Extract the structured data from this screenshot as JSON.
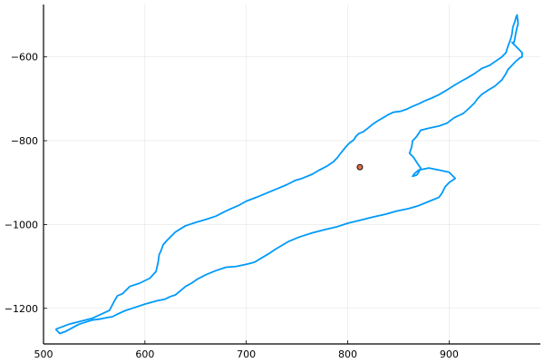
{
  "chart_data": {
    "type": "line",
    "title": "",
    "xlabel": "",
    "ylabel": "",
    "xlim": [
      500,
      990
    ],
    "ylim": [
      -1285,
      -475
    ],
    "grid": true,
    "legend": "none",
    "x_ticks": [
      {
        "value": 500,
        "label": "500"
      },
      {
        "value": 600,
        "label": "600"
      },
      {
        "value": 700,
        "label": "700"
      },
      {
        "value": 800,
        "label": "800"
      },
      {
        "value": 900,
        "label": "900"
      }
    ],
    "y_ticks": [
      {
        "value": -600,
        "label": "−600"
      },
      {
        "value": -800,
        "label": "−800"
      },
      {
        "value": -1000,
        "label": "−1000"
      },
      {
        "value": -1200,
        "label": "−1200"
      }
    ],
    "series": [
      {
        "name": "outline",
        "kind": "line",
        "color": "#009AFA",
        "x": [
          512,
          525,
          535,
          548,
          556,
          565,
          570,
          573,
          578,
          585,
          595,
          605,
          611,
          613,
          614,
          616,
          618,
          621,
          625,
          630,
          640,
          650,
          660,
          670,
          678,
          685,
          692,
          700,
          710,
          720,
          730,
          740,
          748,
          755,
          765,
          772,
          780,
          786,
          790,
          793,
          798,
          802,
          806,
          808,
          811,
          815,
          820,
          825,
          830,
          835,
          840,
          845,
          852,
          858,
          864,
          870,
          876,
          883,
          890,
          897,
          905,
          912,
          918,
          925,
          932,
          940,
          946,
          952,
          956,
          958,
          960,
          961,
          962,
          963,
          965,
          966,
          967,
          968,
          966,
          965,
          964,
          963,
          962,
          964,
          968,
          972,
          972,
          970,
          966,
          962,
          958,
          956,
          952,
          945,
          938,
          932,
          928,
          925,
          920,
          914,
          905,
          898,
          890,
          880,
          872,
          868,
          864,
          863,
          861,
          865,
          869,
          872,
          870,
          868,
          864,
          866,
          870,
          880,
          890,
          900,
          906,
          900,
          896,
          893,
          890,
          880,
          870,
          860,
          848,
          838,
          825,
          812,
          800,
          790,
          778,
          765,
          752,
          742,
          735,
          728,
          722,
          715,
          708,
          700,
          690,
          680,
          670,
          660,
          652,
          646,
          640,
          635,
          630,
          625,
          620,
          612,
          600,
          590,
          580,
          572,
          568,
          563,
          557,
          548,
          535,
          522,
          516,
          512
        ],
        "y": [
          -1250,
          -1238,
          -1232,
          -1224,
          -1215,
          -1205,
          -1182,
          -1170,
          -1165,
          -1148,
          -1140,
          -1128,
          -1112,
          -1090,
          -1072,
          -1062,
          -1048,
          -1040,
          -1030,
          -1018,
          -1003,
          -995,
          -988,
          -980,
          -970,
          -962,
          -955,
          -944,
          -935,
          -925,
          -915,
          -905,
          -895,
          -890,
          -880,
          -870,
          -860,
          -850,
          -840,
          -830,
          -815,
          -805,
          -798,
          -790,
          -783,
          -779,
          -770,
          -760,
          -752,
          -745,
          -738,
          -732,
          -730,
          -725,
          -718,
          -712,
          -705,
          -698,
          -690,
          -680,
          -668,
          -658,
          -650,
          -640,
          -628,
          -620,
          -610,
          -600,
          -590,
          -575,
          -562,
          -555,
          -545,
          -528,
          -515,
          -505,
          -500,
          -520,
          -540,
          -555,
          -565,
          -568,
          -565,
          -570,
          -580,
          -590,
          -600,
          -602,
          -610,
          -620,
          -630,
          -640,
          -655,
          -670,
          -680,
          -690,
          -700,
          -710,
          -722,
          -735,
          -745,
          -758,
          -765,
          -770,
          -775,
          -790,
          -800,
          -815,
          -830,
          -840,
          -855,
          -865,
          -875,
          -882,
          -885,
          -878,
          -870,
          -865,
          -870,
          -875,
          -890,
          -900,
          -910,
          -925,
          -935,
          -945,
          -955,
          -962,
          -968,
          -975,
          -982,
          -990,
          -997,
          -1005,
          -1012,
          -1020,
          -1030,
          -1040,
          -1050,
          -1060,
          -1070,
          -1080,
          -1090,
          -1095,
          -1100,
          -1102,
          -1110,
          -1120,
          -1130,
          -1140,
          -1148,
          -1158,
          -1168,
          -1172,
          -1178,
          -1182,
          -1190,
          -1198,
          -1206,
          -1215,
          -1220,
          -1222,
          -1225,
          -1228,
          -1238,
          -1255,
          -1260,
          -1250
        ]
      },
      {
        "name": "point",
        "kind": "scatter",
        "color": "#E26F46",
        "x": [
          812
        ],
        "y": [
          -863
        ]
      }
    ]
  }
}
